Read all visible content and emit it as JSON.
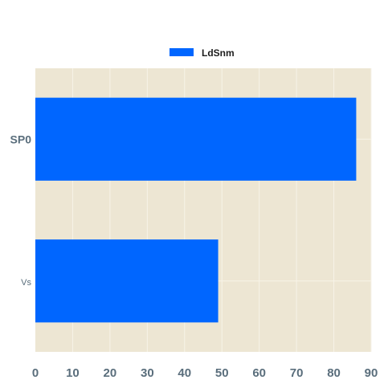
{
  "chart_data": {
    "type": "bar",
    "orientation": "horizontal",
    "categories": [
      "SP0",
      "Vs"
    ],
    "series": [
      {
        "name": "LdSnm",
        "values": [
          86,
          49
        ]
      }
    ],
    "xlim": [
      0,
      90
    ],
    "xticks": [
      0,
      10,
      20,
      30,
      40,
      50,
      60,
      70,
      80,
      90
    ],
    "grid": true,
    "legend": "top-center",
    "colors": {
      "bar": "#0066ff",
      "plot_background": "#ede6d3",
      "grid": "#f7f3e8"
    }
  }
}
